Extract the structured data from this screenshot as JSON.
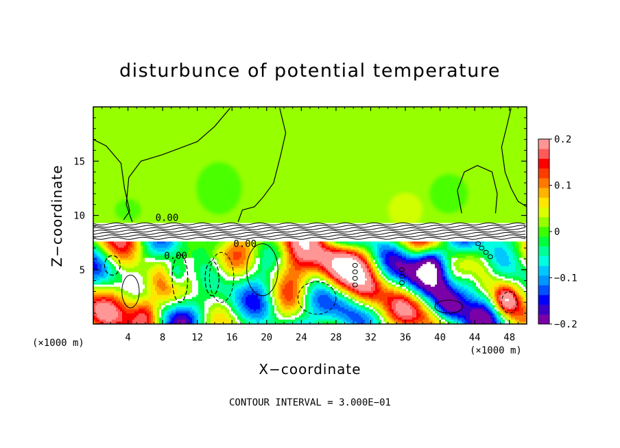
{
  "chart_data": {
    "type": "heatmap",
    "title": "disturbunce of potential temperature",
    "xlabel": "X−coordinate",
    "ylabel": "Z−coordinate",
    "x_unit_left": "(×1000 m)",
    "x_unit_right": "(×1000 m)",
    "xlim": [
      0,
      50
    ],
    "ylim": [
      0,
      20
    ],
    "x_ticks": [
      4,
      8,
      12,
      16,
      20,
      24,
      28,
      32,
      36,
      40,
      44,
      48
    ],
    "x_tick_labels": [
      "4",
      "8",
      "12",
      "16",
      "20",
      "24",
      "28",
      "32",
      "36",
      "40",
      "44",
      "48"
    ],
    "y_ticks": [
      5,
      10,
      15
    ],
    "y_tick_labels": [
      "5",
      "10",
      "15"
    ],
    "contour_labels": [
      {
        "text": "0.00",
        "x": 8.5,
        "y": 9.5
      },
      {
        "text": "0.00",
        "x": 17.5,
        "y": 7.1
      },
      {
        "text": "0.00",
        "x": 9.5,
        "y": 6.0
      }
    ],
    "colorbar": {
      "vmin": -0.2,
      "vmax": 0.2,
      "ticks": [
        0.2,
        0.1,
        0,
        -0.1,
        -0.2
      ],
      "tick_labels": [
        "0.2",
        "0.1",
        "0",
        "−0.1",
        "−0.2"
      ],
      "colors": [
        "#7a00a8",
        "#3c00c8",
        "#0000ff",
        "#0050ff",
        "#0096ff",
        "#00c8ff",
        "#00ffe0",
        "#00ff96",
        "#00ff3c",
        "#3cff00",
        "#96ff00",
        "#dcff00",
        "#ffe600",
        "#ffb400",
        "#ff7800",
        "#ff3c00",
        "#ff0000",
        "#ff5a5a",
        "#ff9696"
      ]
    },
    "background_level": 0.02,
    "contour_interval_text": "CONTOUR INTERVAL = 3.000E−01"
  }
}
